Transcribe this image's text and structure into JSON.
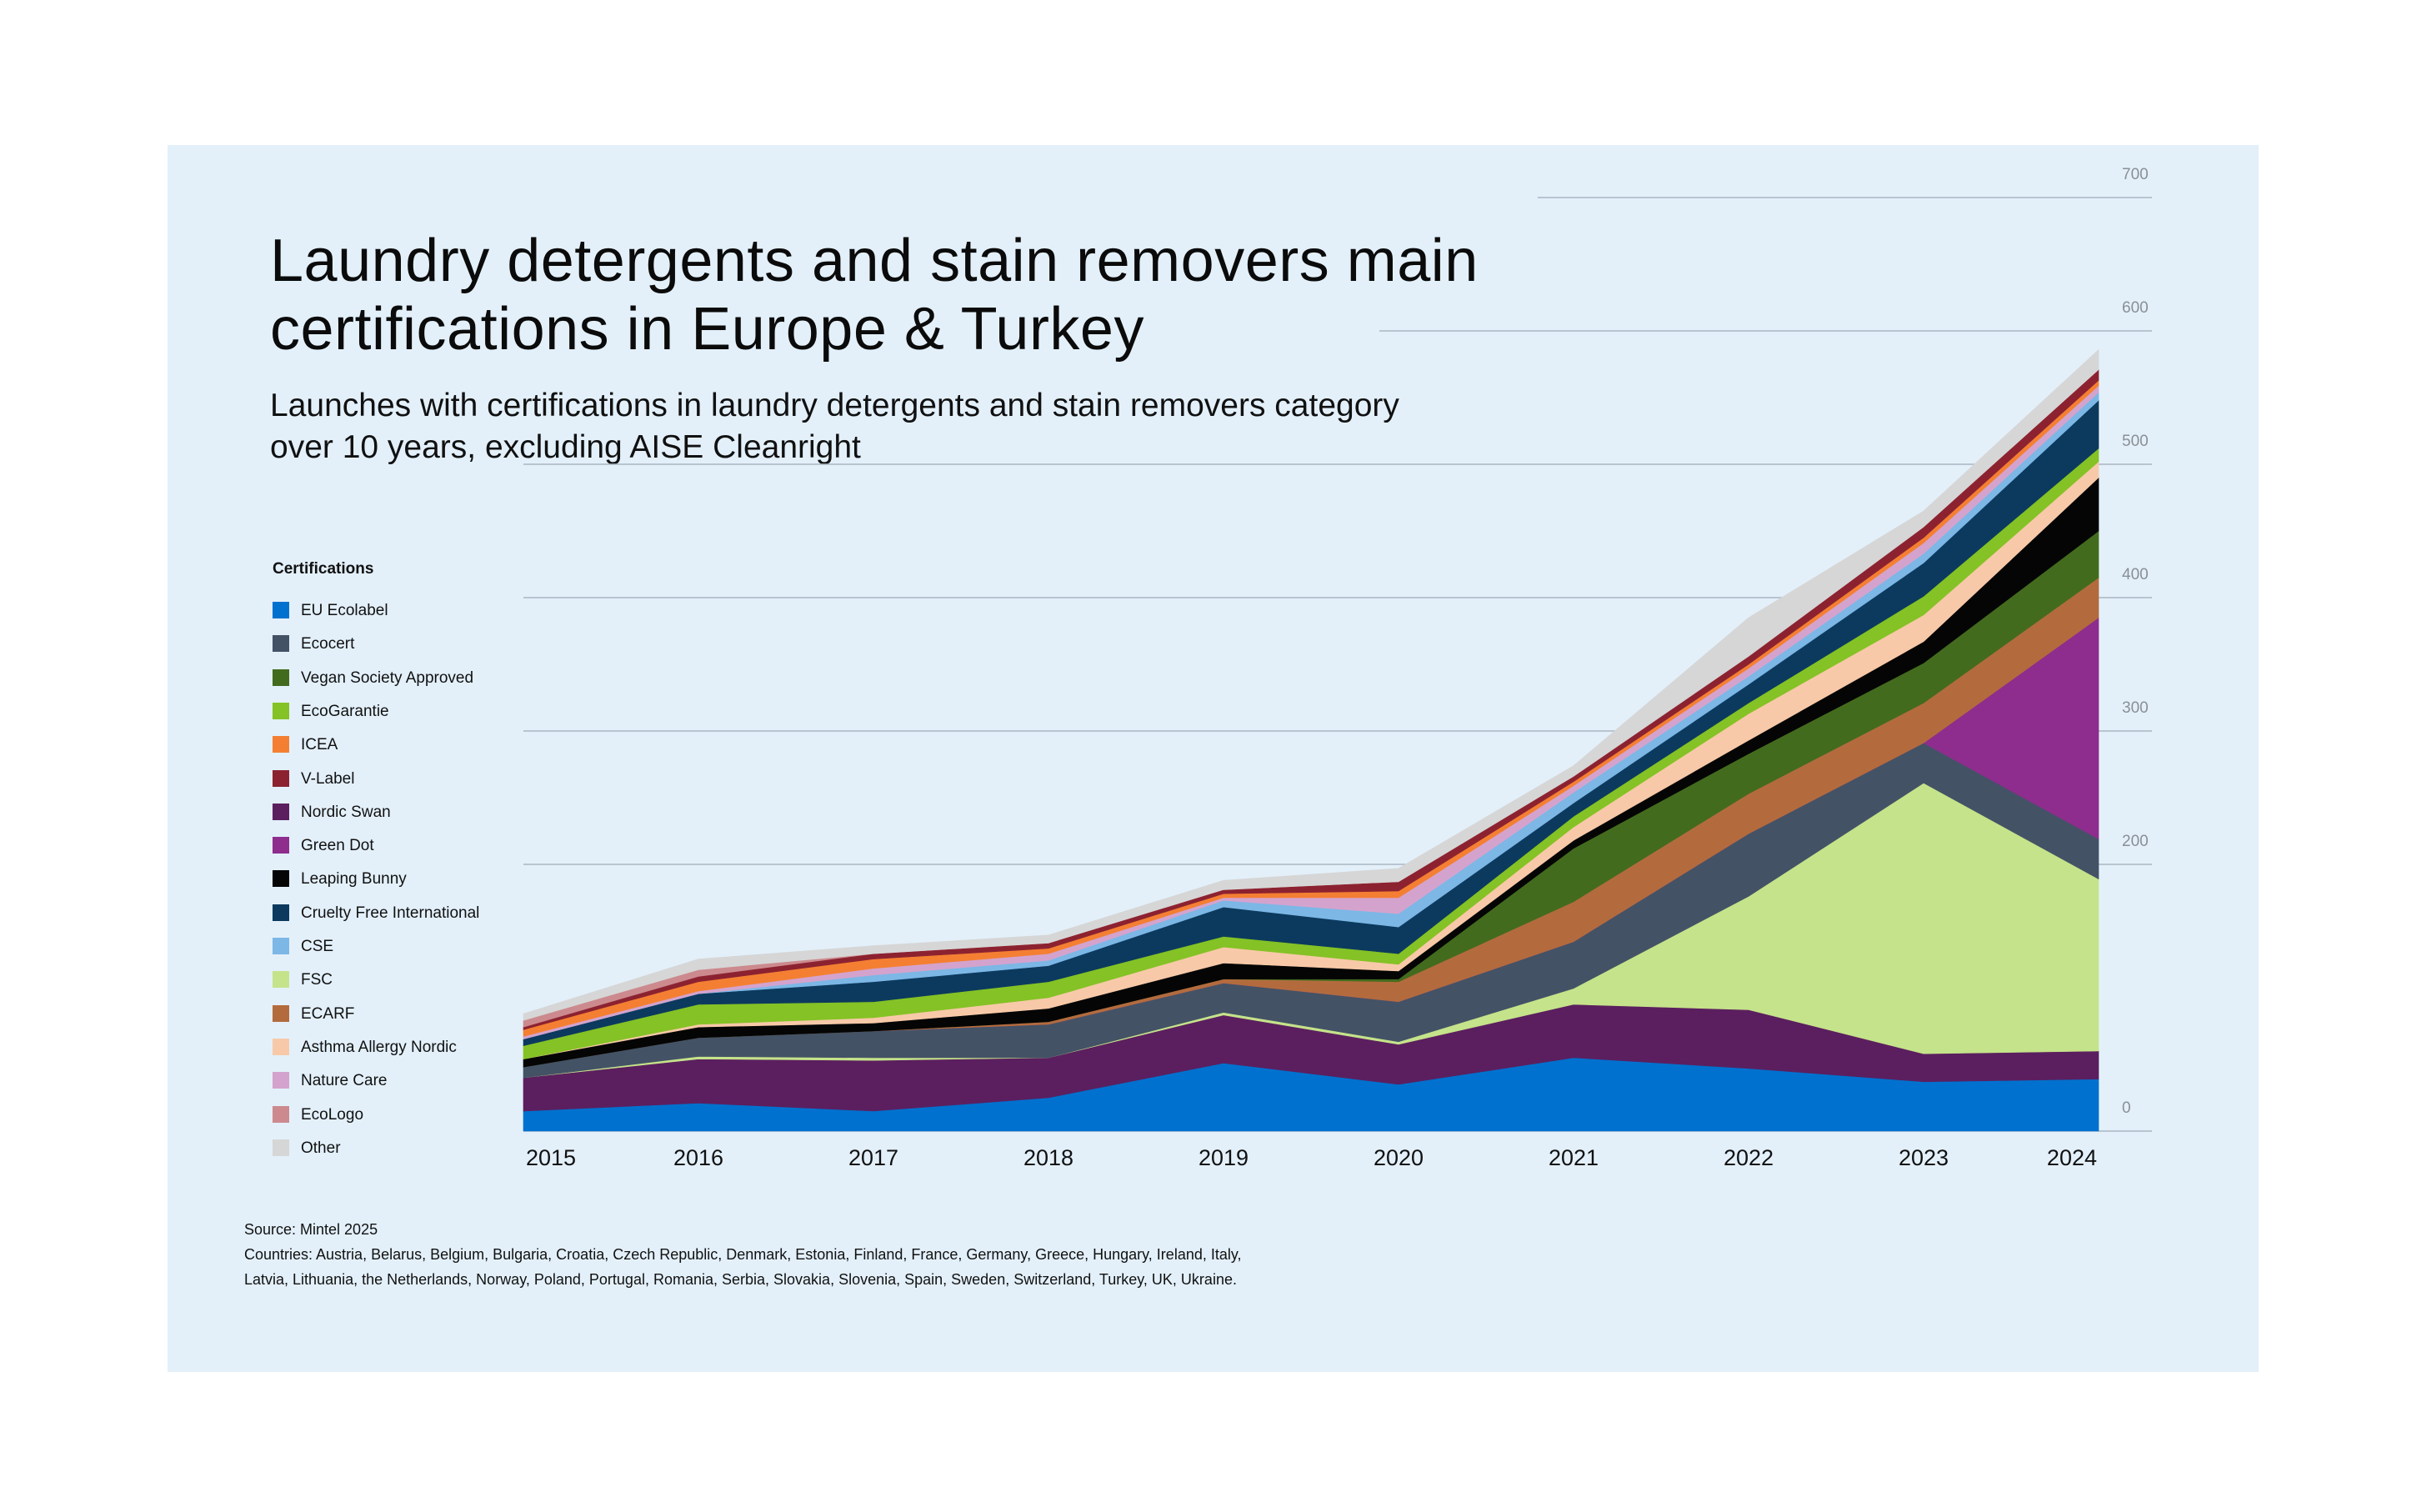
{
  "chart_data": {
    "type": "area",
    "stacked": true,
    "title": "Laundry detergents and stain removers main certifications in Europe & Turkey",
    "subtitle": "Launches with certifications in laundry detergents and stain removers category over 10 years, excluding AISE Cleanright",
    "legend_title": "Certifications",
    "legend_position": "left",
    "categories": [
      "2015",
      "2016",
      "2017",
      "2018",
      "2019",
      "2020",
      "2021",
      "2022",
      "2023",
      "2024"
    ],
    "y_ticks": [
      "0",
      "200",
      "300",
      "400",
      "500",
      "600",
      "700"
    ],
    "ylim": [
      0,
      700
    ],
    "grid": true,
    "series": [
      {
        "name": "EU Ecolabel",
        "color": "#0071ce",
        "values": [
          15,
          21,
          15,
          25,
          51,
          35,
          55,
          47,
          37,
          39
        ]
      },
      {
        "name": "Nordic Swan",
        "color": "#5b1f5f",
        "values": [
          25,
          33,
          38,
          30,
          36,
          30,
          40,
          44,
          21,
          21
        ]
      },
      {
        "name": "FSC",
        "color": "#c5e38a",
        "values": [
          0,
          2,
          2,
          0,
          2,
          2,
          12,
          85,
          203,
          129
        ]
      },
      {
        "name": "Ecocert",
        "color": "#445266",
        "values": [
          8,
          14,
          20,
          25,
          22,
          30,
          35,
          47,
          30,
          30
        ]
      },
      {
        "name": "Green Dot",
        "color": "#8e2d8d",
        "values": [
          0,
          0,
          0,
          0,
          0,
          0,
          0,
          0,
          0,
          166
        ]
      },
      {
        "name": "ECARF",
        "color": "#b36b3e",
        "values": [
          0,
          0,
          0,
          2,
          3,
          15,
          30,
          30,
          30,
          30
        ]
      },
      {
        "name": "Vegan Society Approved",
        "color": "#436b1e",
        "values": [
          0,
          0,
          0,
          0,
          0,
          2,
          40,
          30,
          30,
          35
        ]
      },
      {
        "name": "Leaping Bunny",
        "color": "#050505",
        "values": [
          6,
          8,
          6,
          10,
          12,
          6,
          6,
          10,
          16,
          40
        ]
      },
      {
        "name": "Asthma Allergy Nordic",
        "color": "#f8c9a8",
        "values": [
          0,
          2,
          4,
          8,
          12,
          5,
          10,
          20,
          20,
          12
        ]
      },
      {
        "name": "EcoGarantie",
        "color": "#84c225",
        "values": [
          10,
          15,
          12,
          12,
          8,
          8,
          8,
          8,
          14,
          10
        ]
      },
      {
        "name": "Cruelty Free International",
        "color": "#0c3a5e",
        "values": [
          5,
          8,
          15,
          12,
          22,
          20,
          10,
          14,
          25,
          36
        ]
      },
      {
        "name": "CSE",
        "color": "#7cb7e6",
        "values": [
          0,
          0,
          5,
          4,
          5,
          10,
          8,
          6,
          7,
          6
        ]
      },
      {
        "name": "Nature Care",
        "color": "#d4a3cd",
        "values": [
          2,
          2,
          5,
          5,
          2,
          12,
          5,
          6,
          8,
          5
        ]
      },
      {
        "name": "ICEA",
        "color": "#f47f32",
        "values": [
          5,
          7,
          7,
          4,
          3,
          5,
          3,
          3,
          4,
          4
        ]
      },
      {
        "name": "V-Label",
        "color": "#8c2230",
        "values": [
          2,
          4,
          4,
          4,
          3,
          7,
          4,
          6,
          8,
          8
        ]
      },
      {
        "name": "EcoLogo",
        "color": "#cc8a8e",
        "values": [
          5,
          5,
          0,
          0,
          0,
          0,
          0,
          0,
          0,
          0
        ]
      },
      {
        "name": "Other",
        "color": "#d6d6d6",
        "values": [
          5,
          8,
          6,
          6,
          7,
          10,
          8,
          29,
          12,
          15
        ]
      }
    ],
    "legend_order": [
      "EU Ecolabel",
      "Ecocert",
      "Vegan Society Approved",
      "EcoGarantie",
      "ICEA",
      "V-Label",
      "Nordic Swan",
      "Green Dot",
      "Leaping Bunny",
      "Cruelty Free International",
      "CSE",
      "FSC",
      "ECARF",
      "Asthma Allergy Nordic",
      "Nature Care",
      "EcoLogo",
      "Other"
    ]
  },
  "footer": {
    "source": "Source: Mintel 2025",
    "countries_line1": "Countries: Austria, Belarus, Belgium, Bulgaria, Croatia, Czech Republic, Denmark, Estonia, Finland, France, Germany, Greece, Hungary, Ireland, Italy,",
    "countries_line2": "Latvia, Lithuania, the Netherlands, Norway, Poland, Portugal, Romania, Serbia, Slovakia, Slovenia, Spain, Sweden, Switzerland, Turkey, UK, Ukraine."
  }
}
